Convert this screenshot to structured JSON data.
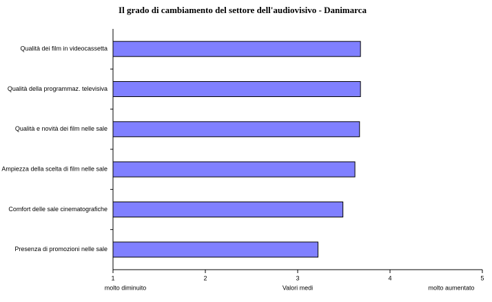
{
  "chart_data": {
    "type": "bar",
    "orientation": "horizontal",
    "title": "Il grado di cambiamento del settore dell'audiovisivo - Danimarca",
    "categories": [
      "Qualità dei film in videocassetta",
      "Qualità della programmaz. televisiva",
      "Qualità e novità dei film nelle sale",
      "Ampiezza della scelta di film nelle sale",
      "Comfort delle sale cinematografiche",
      "Presenza di promozioni nelle sale"
    ],
    "values": [
      3.68,
      3.68,
      3.67,
      3.62,
      3.49,
      3.22
    ],
    "color": "#8080ff",
    "xlabel": "Valori medi",
    "annotations": [
      "molto diminuito",
      "molto aumentato"
    ],
    "xlim": [
      1,
      5
    ],
    "xticks": [
      1,
      2,
      3,
      4,
      5
    ],
    "grid": false
  }
}
